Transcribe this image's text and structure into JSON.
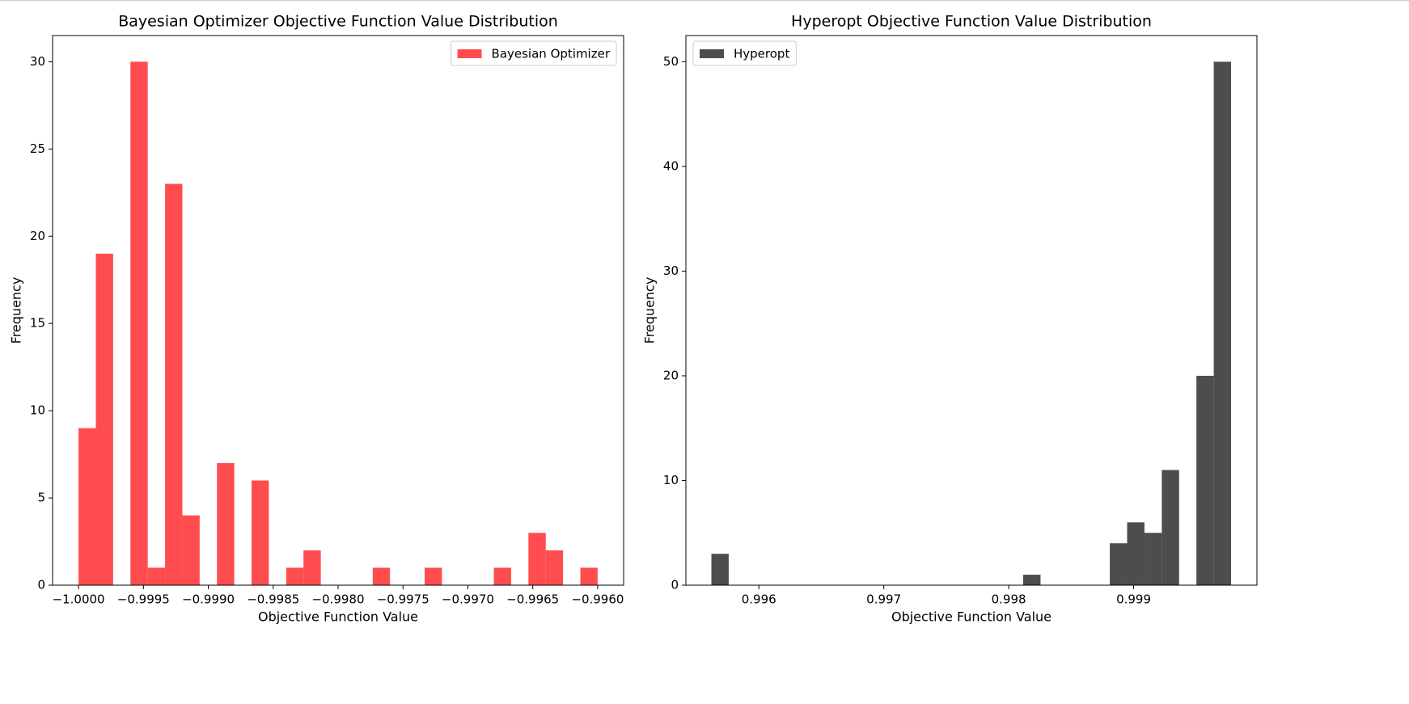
{
  "chart_data": [
    {
      "type": "histogram",
      "title": "Bayesian Optimizer Objective Function Value Distribution",
      "xlabel": "Objective Function Value",
      "ylabel": "Frequency",
      "bins": [
        -1.0,
        -0.9998667,
        -0.9997333,
        -0.9996,
        -0.9994667,
        -0.9993333,
        -0.9992,
        -0.9990667,
        -0.9989333,
        -0.9988,
        -0.9986667,
        -0.9985333,
        -0.9984,
        -0.9982667,
        -0.9981333,
        -0.998,
        -0.9978667,
        -0.9977333,
        -0.9976,
        -0.9974667,
        -0.9973333,
        -0.9972,
        -0.9970667,
        -0.9969333,
        -0.9968,
        -0.9966667,
        -0.9965333,
        -0.9964,
        -0.9962667,
        -0.9961333,
        -0.996
      ],
      "series": [
        {
          "name": "Bayesian Optimizer",
          "color": "#ff4d4f",
          "values": [
            9,
            19,
            0,
            30,
            1,
            23,
            4,
            0,
            7,
            0,
            6,
            0,
            1,
            2,
            0,
            0,
            0,
            1,
            0,
            0,
            1,
            0,
            0,
            0,
            1,
            0,
            3,
            2,
            0,
            1
          ]
        }
      ],
      "xlim": [
        -1.0002,
        -0.9958
      ],
      "xticks": [
        {
          "value": -1.0,
          "label": "−1.0000"
        },
        {
          "value": -0.9995,
          "label": "−0.9995"
        },
        {
          "value": -0.999,
          "label": "−0.9990"
        },
        {
          "value": -0.9985,
          "label": "−0.9985"
        },
        {
          "value": -0.998,
          "label": "−0.9980"
        },
        {
          "value": -0.9975,
          "label": "−0.9975"
        },
        {
          "value": -0.997,
          "label": "−0.9970"
        },
        {
          "value": -0.9965,
          "label": "−0.9965"
        },
        {
          "value": -0.996,
          "label": "−0.9960"
        }
      ],
      "ylim": [
        0,
        31.5
      ],
      "yticks": [
        0,
        5,
        10,
        15,
        20,
        25,
        30
      ],
      "legend": "upper right"
    },
    {
      "type": "histogram",
      "title": "Hyperopt Objective Function Value Distribution",
      "xlabel": "Objective Function Value",
      "ylabel": "Frequency",
      "bins": [
        0.99562,
        0.9957587,
        0.9958973,
        0.996036,
        0.9961747,
        0.9963133,
        0.996452,
        0.9965907,
        0.9967293,
        0.996868,
        0.9970067,
        0.9971453,
        0.997284,
        0.9974227,
        0.9975613,
        0.9977,
        0.9978387,
        0.9979773,
        0.998116,
        0.9982547,
        0.9983933,
        0.998532,
        0.9986707,
        0.9988093,
        0.998948,
        0.9990867,
        0.9992253,
        0.999364,
        0.9995027,
        0.9996413,
        0.99978
      ],
      "series": [
        {
          "name": "Hyperopt",
          "color": "#4d4d4d",
          "values": [
            3,
            0,
            0,
            0,
            0,
            0,
            0,
            0,
            0,
            0,
            0,
            0,
            0,
            0,
            0,
            0,
            0,
            0,
            1,
            0,
            0,
            0,
            0,
            4,
            6,
            5,
            11,
            0,
            20,
            50
          ]
        }
      ],
      "xlim": [
        0.995416,
        0.999987
      ],
      "xticks": [
        0.996,
        0.997,
        0.998,
        0.999
      ],
      "ylim": [
        0,
        52.5
      ],
      "yticks": [
        0,
        10,
        20,
        30,
        40,
        50
      ],
      "legend": "upper left"
    }
  ]
}
